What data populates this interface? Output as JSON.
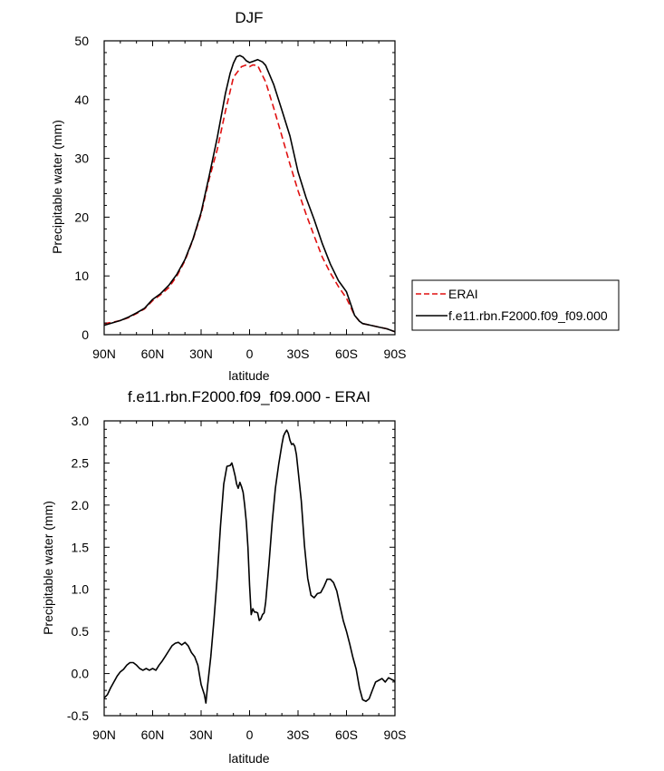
{
  "chart_data": [
    {
      "type": "line",
      "title": "DJF",
      "xlabel": "latitude",
      "ylabel": "Precipitable water (mm)",
      "xlim": [
        90,
        -90
      ],
      "ylim": [
        0,
        50
      ],
      "x_ticks": [
        90,
        60,
        30,
        0,
        -30,
        -60,
        -90
      ],
      "x_tick_labels": [
        "90N",
        "60N",
        "30N",
        "0",
        "30S",
        "60S",
        "90S"
      ],
      "y_ticks": [
        0,
        10,
        20,
        30,
        40,
        50
      ],
      "y_tick_labels": [
        "0",
        "10",
        "20",
        "30",
        "40",
        "50"
      ],
      "legend_position": "outside-right",
      "series": [
        {
          "name": "ERAI",
          "color": "#e01010",
          "dash": "dashed",
          "x": [
            90,
            85,
            80,
            75,
            70,
            65,
            60,
            55,
            50,
            45,
            40,
            35,
            30,
            25,
            20,
            15,
            10,
            5,
            2,
            0,
            -2,
            -5,
            -10,
            -15,
            -20,
            -25,
            -30,
            -35,
            -40,
            -45,
            -50,
            -55,
            -60,
            -65,
            -68,
            -70,
            -75,
            -80,
            -85,
            -90
          ],
          "y": [
            1.9,
            2.1,
            2.4,
            2.9,
            3.6,
            4.4,
            5.8,
            6.8,
            8.0,
            10.0,
            12.6,
            16.2,
            20.5,
            26.5,
            31.5,
            38.0,
            43.8,
            45.6,
            45.9,
            45.6,
            45.9,
            45.8,
            43.0,
            38.5,
            33.8,
            29.0,
            24.5,
            20.5,
            16.8,
            13.2,
            10.5,
            8.2,
            6.2,
            3.3,
            2.3,
            1.9,
            1.6,
            1.3,
            1.0,
            0.5
          ]
        },
        {
          "name": "f.e11.rbn.F2000.f09_f09.000",
          "color": "#000000",
          "dash": "solid",
          "x": [
            90,
            85,
            80,
            75,
            70,
            65,
            60,
            55,
            50,
            45,
            40,
            35,
            30,
            25,
            20,
            15,
            12,
            10,
            8,
            6,
            4,
            2,
            0,
            -2,
            -5,
            -8,
            -10,
            -15,
            -20,
            -25,
            -30,
            -35,
            -40,
            -45,
            -50,
            -55,
            -60,
            -65,
            -68,
            -70,
            -75,
            -80,
            -85,
            -90
          ],
          "y": [
            1.6,
            2.0,
            2.4,
            3.0,
            3.7,
            4.5,
            6.0,
            7.0,
            8.4,
            10.3,
            12.8,
            16.3,
            20.8,
            27.0,
            33.5,
            41.0,
            44.5,
            46.2,
            47.3,
            47.5,
            47.2,
            46.6,
            46.3,
            46.5,
            46.8,
            46.4,
            45.8,
            42.5,
            38.2,
            33.8,
            27.7,
            23.3,
            19.6,
            15.5,
            12.0,
            9.2,
            7.3,
            3.3,
            2.3,
            1.9,
            1.6,
            1.3,
            1.0,
            0.5
          ]
        }
      ]
    },
    {
      "type": "line",
      "title": "f.e11.rbn.F2000.f09_f09.000 - ERAI",
      "xlabel": "latitude",
      "ylabel": "Precipitable water (mm)",
      "xlim": [
        90,
        -90
      ],
      "ylim": [
        -0.5,
        3.0
      ],
      "x_ticks": [
        90,
        60,
        30,
        0,
        -30,
        -60,
        -90
      ],
      "x_tick_labels": [
        "90N",
        "60N",
        "30N",
        "0",
        "30S",
        "60S",
        "90S"
      ],
      "y_ticks": [
        -0.5,
        0.0,
        0.5,
        1.0,
        1.5,
        2.0,
        2.5,
        3.0
      ],
      "y_tick_labels": [
        "-0.5",
        "0.0",
        "0.5",
        "1.0",
        "1.5",
        "2.0",
        "2.5",
        "3.0"
      ],
      "series": [
        {
          "color": "#000000",
          "dash": "solid",
          "x": [
            90,
            88,
            86,
            84,
            82,
            80,
            78,
            76,
            74,
            72,
            70,
            68,
            66,
            64,
            62,
            60,
            58,
            56,
            54,
            52,
            50,
            48,
            46,
            44,
            42,
            40,
            38,
            36,
            34,
            32,
            30,
            28,
            27,
            26,
            24,
            22,
            20,
            18,
            16,
            14,
            12,
            11,
            10,
            9,
            8,
            7,
            6,
            5,
            4,
            3,
            2,
            1,
            0,
            -1,
            -2,
            -3,
            -4,
            -5,
            -6,
            -7,
            -8,
            -9,
            -10,
            -12,
            -14,
            -16,
            -18,
            -20,
            -21,
            -22,
            -23,
            -24,
            -25,
            -26,
            -27,
            -28,
            -29,
            -30,
            -32,
            -34,
            -36,
            -38,
            -40,
            -42,
            -44,
            -46,
            -48,
            -50,
            -52,
            -54,
            -56,
            -58,
            -60,
            -62,
            -64,
            -66,
            -68,
            -70,
            -72,
            -74,
            -76,
            -78,
            -80,
            -82,
            -84,
            -86,
            -88,
            -90
          ],
          "y": [
            -0.29,
            -0.25,
            -0.17,
            -0.1,
            -0.03,
            0.02,
            0.05,
            0.1,
            0.13,
            0.13,
            0.1,
            0.06,
            0.04,
            0.06,
            0.04,
            0.06,
            0.04,
            0.1,
            0.15,
            0.21,
            0.27,
            0.33,
            0.36,
            0.37,
            0.34,
            0.37,
            0.33,
            0.25,
            0.2,
            0.1,
            -0.13,
            -0.25,
            -0.35,
            -0.15,
            0.2,
            0.65,
            1.15,
            1.75,
            2.25,
            2.46,
            2.47,
            2.5,
            2.43,
            2.35,
            2.25,
            2.2,
            2.27,
            2.22,
            2.15,
            2.0,
            1.8,
            1.5,
            1.05,
            0.7,
            0.77,
            0.73,
            0.73,
            0.72,
            0.63,
            0.65,
            0.7,
            0.72,
            0.85,
            1.3,
            1.8,
            2.2,
            2.48,
            2.72,
            2.82,
            2.86,
            2.89,
            2.85,
            2.77,
            2.72,
            2.73,
            2.7,
            2.6,
            2.42,
            2.05,
            1.52,
            1.13,
            0.93,
            0.9,
            0.95,
            0.96,
            1.03,
            1.12,
            1.12,
            1.08,
            0.98,
            0.8,
            0.63,
            0.5,
            0.35,
            0.19,
            0.05,
            -0.17,
            -0.31,
            -0.33,
            -0.3,
            -0.2,
            -0.1,
            -0.08,
            -0.06,
            -0.1,
            -0.05,
            -0.07,
            -0.09
          ]
        }
      ]
    }
  ]
}
